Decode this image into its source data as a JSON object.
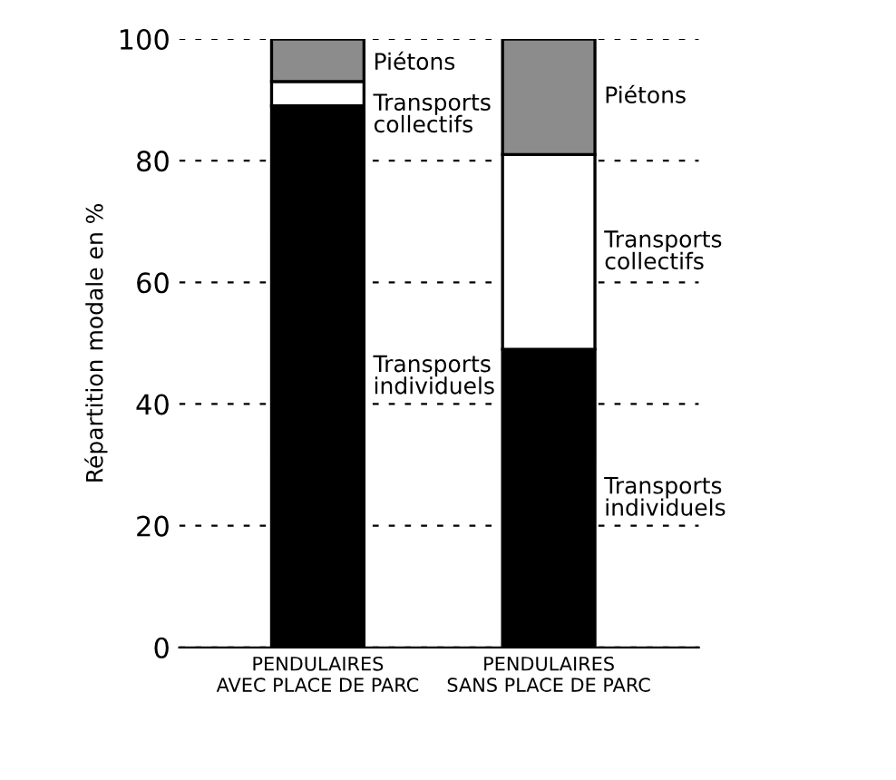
{
  "chart_data": {
    "type": "bar",
    "stacked": true,
    "ylabel": "Répartition modale en %",
    "categories": [
      "PENDULAIRES\nAVEC PLACE DE PARC",
      "PENDULAIRES\nSANS PLACE DE PARC"
    ],
    "series": [
      {
        "name": "Transports individuels",
        "color": "#000000",
        "values": [
          89,
          49
        ]
      },
      {
        "name": "Transports collectifs",
        "color": "#ffffff",
        "values": [
          4,
          32
        ]
      },
      {
        "name": "Piétons",
        "color": "#8c8c8c",
        "values": [
          7,
          19
        ]
      }
    ],
    "ylim": [
      0,
      100
    ],
    "yticks": [
      0,
      20,
      40,
      60,
      80,
      100
    ],
    "grid": "y",
    "legend": false
  }
}
